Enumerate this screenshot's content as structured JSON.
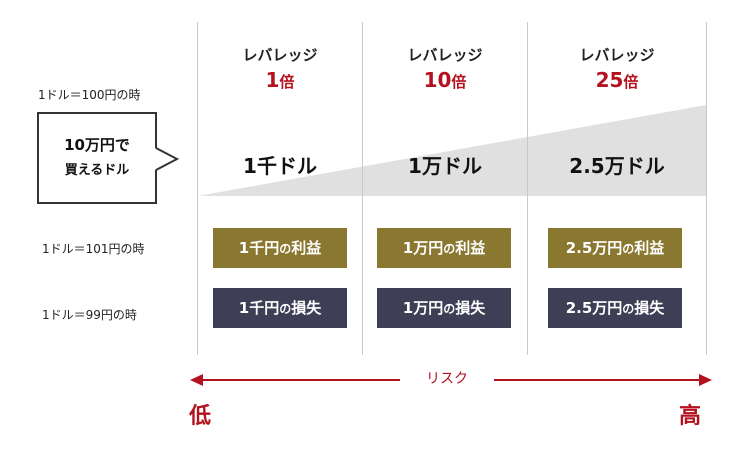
{
  "rate_labels": {
    "base": "1ドル＝100円の時",
    "up": "1ドル＝101円の時",
    "down": "1ドル＝99円の時"
  },
  "bubble": {
    "line1": "10万円で",
    "line2": "買えるドル"
  },
  "columns": [
    {
      "leverage_label": "レバレッジ",
      "multiplier": "1",
      "unit": "倍",
      "dollars": "1千ドル",
      "profit_amount": "1千円",
      "loss_amount": "1千円"
    },
    {
      "leverage_label": "レバレッジ",
      "multiplier": "10",
      "unit": "倍",
      "dollars": "1万ドル",
      "profit_amount": "1万円",
      "loss_amount": "1万円"
    },
    {
      "leverage_label": "レバレッジ",
      "multiplier": "25",
      "unit": "倍",
      "dollars": "2.5万ドル",
      "profit_amount": "2.5万円",
      "loss_amount": "2.5万円"
    }
  ],
  "particle": "の",
  "profit_word": "利益",
  "loss_word": "損失",
  "risk_axis": {
    "label": "リスク",
    "low": "低",
    "high": "高"
  },
  "colors": {
    "accent_red": "#b3121e",
    "profit_bg": "#8a7730",
    "loss_bg": "#3e3e56",
    "wedge_gray": "#e0e0e0"
  }
}
